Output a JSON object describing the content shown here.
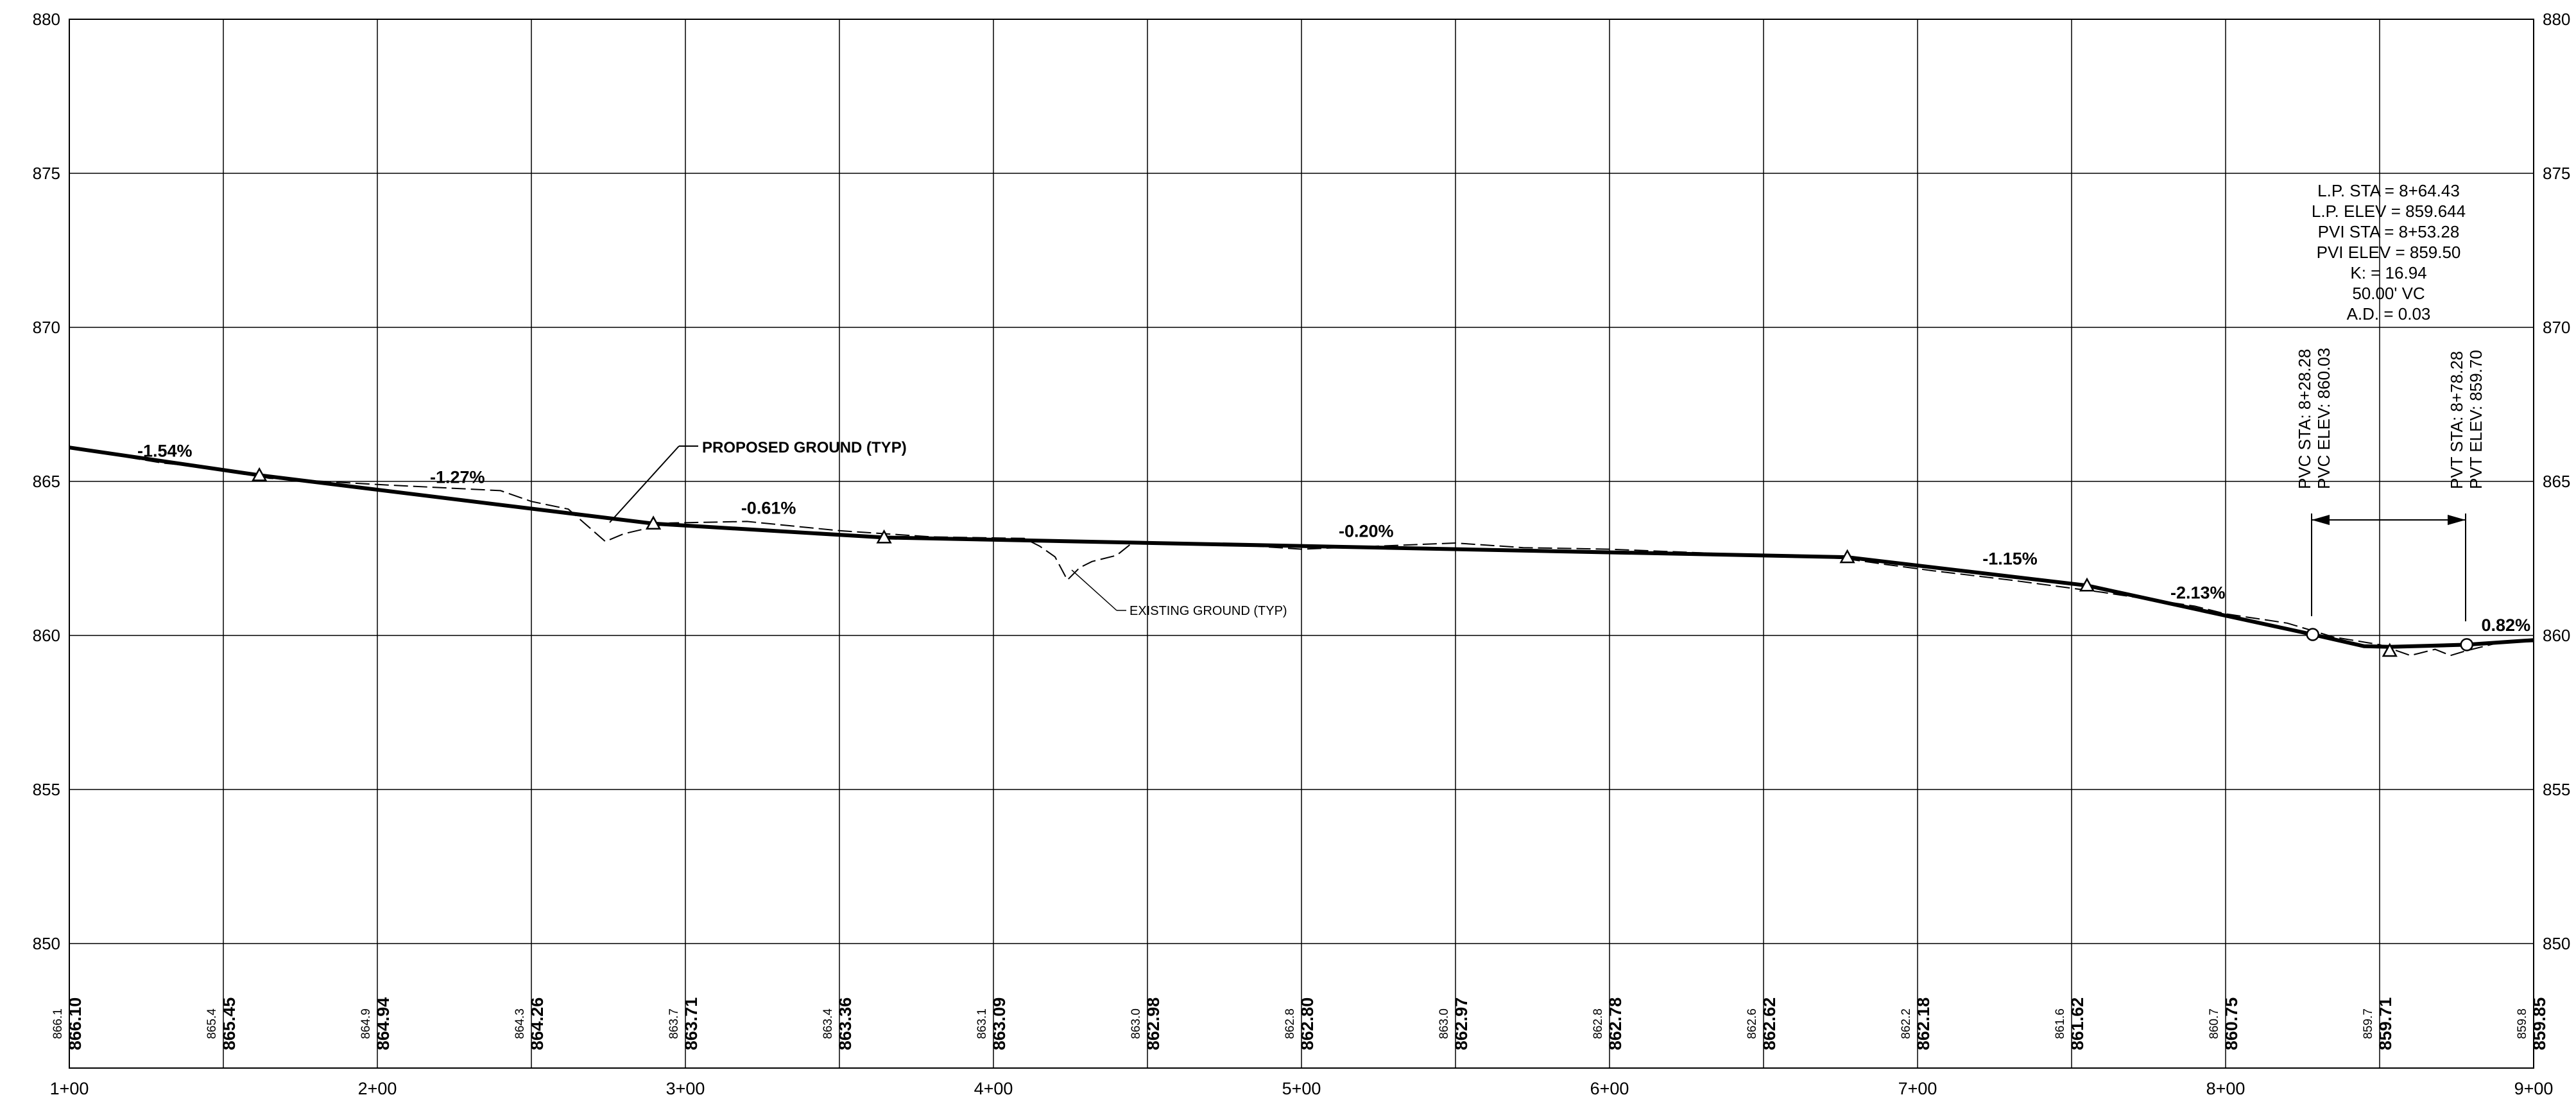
{
  "chart_data": {
    "type": "line",
    "title": "",
    "xlabel": "",
    "ylabel": "",
    "xlim": [
      100,
      900
    ],
    "ylim": [
      850,
      880
    ],
    "y_ticks": [
      "880",
      "875",
      "870",
      "865",
      "860",
      "855",
      "850"
    ],
    "x_ticks": [
      "1+00",
      "2+00",
      "3+00",
      "4+00",
      "5+00",
      "6+00",
      "7+00",
      "8+00",
      "9+00"
    ],
    "bottom_band": [
      {
        "sta": 100,
        "existing": "866.1",
        "proposed": "866.10"
      },
      {
        "sta": 150,
        "existing": "865.4",
        "proposed": "865.45"
      },
      {
        "sta": 200,
        "existing": "864.9",
        "proposed": "864.94"
      },
      {
        "sta": 250,
        "existing": "864.3",
        "proposed": "864.26"
      },
      {
        "sta": 300,
        "existing": "863.7",
        "proposed": "863.71"
      },
      {
        "sta": 350,
        "existing": "863.4",
        "proposed": "863.36"
      },
      {
        "sta": 400,
        "existing": "863.1",
        "proposed": "863.09"
      },
      {
        "sta": 450,
        "existing": "863.0",
        "proposed": "862.98"
      },
      {
        "sta": 500,
        "existing": "862.8",
        "proposed": "862.80"
      },
      {
        "sta": 550,
        "existing": "863.0",
        "proposed": "862.97"
      },
      {
        "sta": 600,
        "existing": "862.8",
        "proposed": "862.78"
      },
      {
        "sta": 650,
        "existing": "862.6",
        "proposed": "862.62"
      },
      {
        "sta": 700,
        "existing": "862.2",
        "proposed": "862.18"
      },
      {
        "sta": 750,
        "existing": "861.6",
        "proposed": "861.62"
      },
      {
        "sta": 800,
        "existing": "860.7",
        "proposed": "860.75"
      },
      {
        "sta": 850,
        "existing": "859.7",
        "proposed": "859.71"
      },
      {
        "sta": 900,
        "existing": "859.8",
        "proposed": "859.85"
      }
    ],
    "series": [
      {
        "name": "PROPOSED GROUND (TYP)",
        "style": "solid-heavy",
        "points": [
          [
            100,
            866.1
          ],
          [
            161.7,
            865.2
          ],
          [
            289.6,
            863.63
          ],
          [
            364.5,
            863.18
          ],
          [
            677.2,
            862.54
          ],
          [
            755.0,
            861.62
          ],
          [
            828.28,
            860.03
          ],
          [
            845.0,
            859.65
          ],
          [
            853.28,
            859.63
          ],
          [
            865.0,
            859.66
          ],
          [
            878.28,
            859.7
          ],
          [
            900,
            859.85
          ]
        ]
      },
      {
        "name": "EXISTING GROUND (TYP)",
        "style": "thin-dashed",
        "points": [
          [
            100,
            866.1
          ],
          [
            130,
            865.6
          ],
          [
            150,
            865.4
          ],
          [
            165,
            865.1
          ],
          [
            200,
            864.9
          ],
          [
            240,
            864.7
          ],
          [
            250,
            864.35
          ],
          [
            262,
            864.1
          ],
          [
            270,
            863.4
          ],
          [
            274,
            863.05
          ],
          [
            280,
            863.3
          ],
          [
            295,
            863.65
          ],
          [
            320,
            863.7
          ],
          [
            350,
            863.4
          ],
          [
            380,
            863.2
          ],
          [
            410,
            863.15
          ],
          [
            415,
            862.9
          ],
          [
            420,
            862.55
          ],
          [
            424,
            861.8
          ],
          [
            428,
            862.2
          ],
          [
            432,
            862.4
          ],
          [
            440,
            862.6
          ],
          [
            445,
            863.0
          ],
          [
            470,
            863.0
          ],
          [
            500,
            862.8
          ],
          [
            550,
            863.0
          ],
          [
            572,
            862.85
          ],
          [
            600,
            862.8
          ],
          [
            650,
            862.6
          ],
          [
            676,
            862.5
          ],
          [
            690,
            862.3
          ],
          [
            705,
            862.1
          ],
          [
            730,
            861.8
          ],
          [
            760,
            861.4
          ],
          [
            790,
            860.95
          ],
          [
            800,
            860.7
          ],
          [
            820,
            860.4
          ],
          [
            835,
            859.95
          ],
          [
            850,
            859.7
          ],
          [
            860,
            859.35
          ],
          [
            868,
            859.55
          ],
          [
            873,
            859.35
          ],
          [
            878,
            859.5
          ],
          [
            890,
            859.8
          ],
          [
            900,
            859.8
          ]
        ]
      }
    ],
    "grade_labels": [
      {
        "text": "-1.54%",
        "sta": 131,
        "elev": 865.8
      },
      {
        "text": "-1.27%",
        "sta": 226,
        "elev": 864.95
      },
      {
        "text": "-0.61%",
        "sta": 327,
        "elev": 863.95
      },
      {
        "text": "-0.20%",
        "sta": 521,
        "elev": 863.2
      },
      {
        "text": "-1.15%",
        "sta": 730,
        "elev": 862.3
      },
      {
        "text": "-2.13%",
        "sta": 791,
        "elev": 861.2
      },
      {
        "text": "0.82%",
        "sta": 891,
        "elev": 860.15
      }
    ],
    "pvi_markers": [
      {
        "sta": 161.7,
        "elev": 865.2
      },
      {
        "sta": 289.6,
        "elev": 863.63
      },
      {
        "sta": 364.5,
        "elev": 863.18
      },
      {
        "sta": 677.2,
        "elev": 862.54
      },
      {
        "sta": 755.0,
        "elev": 861.62
      },
      {
        "sta": 853.28,
        "elev": 859.5
      }
    ],
    "curve_points": [
      {
        "sta": 828.28,
        "elev": 860.03
      },
      {
        "sta": 878.28,
        "elev": 859.7
      }
    ],
    "annotations": {
      "proposed_ground": "PROPOSED GROUND (TYP)",
      "existing_ground": "EXISTING GROUND (TYP)",
      "curve_table": [
        "L.P. STA = 8+64.43",
        "L.P. ELEV = 859.644",
        "PVI STA = 8+53.28",
        "PVI ELEV = 859.50",
        "K: = 16.94",
        "50.00' VC",
        "A.D. = 0.03"
      ],
      "pvc_lines": [
        "PVC STA: 8+28.28",
        "PVC ELEV: 860.03"
      ],
      "pvt_lines": [
        "PVT STA: 8+78.28",
        "PVT ELEV: 859.70"
      ]
    }
  }
}
